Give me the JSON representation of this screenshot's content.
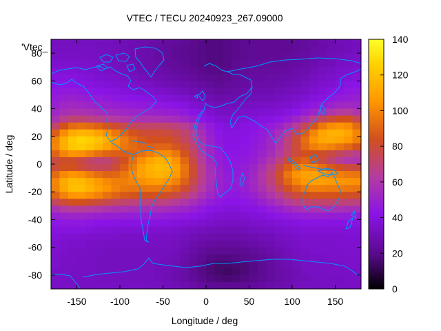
{
  "chart_data": {
    "type": "heatmap",
    "title": "VTEC / TECU 20240923_267.09000",
    "xlabel": "Longitude / deg",
    "ylabel": "Latitude / deg",
    "xlim": [
      -180,
      180
    ],
    "ylim": [
      -90,
      90
    ],
    "x_ticks": [
      -150,
      -100,
      -50,
      0,
      50,
      100,
      150
    ],
    "y_ticks": [
      -80,
      -60,
      -40,
      -20,
      0,
      20,
      40,
      60,
      80
    ],
    "colorbar": {
      "range": [
        0,
        140
      ],
      "ticks": [
        0,
        20,
        40,
        60,
        80,
        100,
        120,
        140
      ],
      "palette": [
        "#000000",
        "#5a0a8c",
        "#8a14e6",
        "#b43ca0",
        "#d2501e",
        "#ff9600",
        "#ffd200",
        "#ffff28"
      ]
    },
    "legend_fragment": "'Vtec_",
    "coastline_color": "#0096ff",
    "lat_centers": [
      87.5,
      82.5,
      77.5,
      72.5,
      67.5,
      62.5,
      57.5,
      52.5,
      47.5,
      42.5,
      37.5,
      32.5,
      27.5,
      22.5,
      17.5,
      12.5,
      7.5,
      2.5,
      -2.5,
      -7.5,
      -12.5,
      -17.5,
      -22.5,
      -27.5,
      -32.5,
      -37.5,
      -42.5,
      -47.5,
      -52.5,
      -57.5,
      -62.5,
      -67.5,
      -72.5,
      -77.5,
      -82.5,
      -87.5
    ],
    "lon_centers": [
      -175,
      -165,
      -155,
      -145,
      -135,
      -125,
      -115,
      -105,
      -95,
      -85,
      -75,
      -65,
      -55,
      -45,
      -35,
      -25,
      -15,
      -5,
      5,
      15,
      25,
      35,
      45,
      55,
      65,
      75,
      85,
      95,
      105,
      115,
      125,
      135,
      145,
      155,
      165,
      175
    ],
    "vtec_grid": [
      [
        32,
        32,
        32,
        32,
        32,
        32,
        32,
        31,
        30,
        29,
        28,
        27,
        26,
        24,
        23,
        22,
        20,
        19,
        18,
        18,
        19,
        20,
        21,
        22,
        22,
        22,
        22,
        22,
        23,
        24,
        25,
        27,
        28,
        30,
        31,
        32
      ],
      [
        33,
        33,
        33,
        33,
        33,
        32,
        32,
        31,
        30,
        29,
        28,
        27,
        25,
        24,
        22,
        21,
        20,
        19,
        18,
        18,
        19,
        20,
        21,
        22,
        22,
        22,
        22,
        22,
        23,
        24,
        26,
        27,
        29,
        30,
        31,
        32
      ],
      [
        34,
        34,
        34,
        34,
        33,
        33,
        32,
        31,
        30,
        29,
        28,
        27,
        25,
        24,
        22,
        21,
        20,
        19,
        18,
        18,
        19,
        20,
        21,
        22,
        22,
        22,
        22,
        23,
        24,
        25,
        27,
        28,
        30,
        31,
        33,
        34
      ],
      [
        36,
        36,
        36,
        35,
        35,
        34,
        33,
        32,
        31,
        30,
        28,
        27,
        26,
        24,
        23,
        22,
        20,
        19,
        18,
        18,
        19,
        21,
        22,
        23,
        23,
        23,
        23,
        24,
        25,
        26,
        28,
        30,
        31,
        33,
        34,
        35
      ],
      [
        38,
        38,
        38,
        37,
        36,
        35,
        34,
        33,
        32,
        31,
        29,
        28,
        27,
        26,
        24,
        23,
        22,
        20,
        19,
        19,
        20,
        22,
        23,
        24,
        24,
        24,
        25,
        25,
        27,
        28,
        30,
        32,
        33,
        35,
        36,
        37
      ],
      [
        40,
        40,
        40,
        39,
        38,
        37,
        36,
        35,
        34,
        32,
        31,
        30,
        29,
        28,
        26,
        25,
        24,
        22,
        21,
        20,
        21,
        23,
        24,
        25,
        25,
        26,
        26,
        27,
        28,
        30,
        32,
        34,
        35,
        37,
        38,
        39
      ],
      [
        42,
        42,
        42,
        41,
        40,
        39,
        38,
        37,
        36,
        35,
        34,
        33,
        31,
        30,
        29,
        28,
        26,
        25,
        23,
        22,
        23,
        24,
        25,
        26,
        27,
        27,
        28,
        29,
        30,
        32,
        34,
        36,
        37,
        39,
        41,
        42
      ],
      [
        44,
        45,
        45,
        44,
        43,
        42,
        41,
        40,
        39,
        38,
        37,
        36,
        35,
        34,
        32,
        31,
        29,
        28,
        26,
        24,
        25,
        26,
        27,
        28,
        29,
        29,
        30,
        31,
        32,
        34,
        36,
        38,
        40,
        42,
        44,
        45
      ],
      [
        46,
        48,
        49,
        48,
        47,
        46,
        45,
        44,
        43,
        42,
        41,
        40,
        39,
        38,
        37,
        35,
        33,
        31,
        29,
        27,
        28,
        28,
        29,
        30,
        31,
        31,
        32,
        33,
        35,
        37,
        39,
        41,
        44,
        46,
        47,
        48
      ],
      [
        49,
        52,
        53,
        52,
        51,
        50,
        49,
        48,
        47,
        46,
        45,
        45,
        44,
        43,
        42,
        40,
        37,
        35,
        32,
        30,
        31,
        31,
        32,
        33,
        34,
        34,
        35,
        36,
        38,
        41,
        44,
        47,
        50,
        52,
        53,
        52
      ],
      [
        52,
        56,
        58,
        58,
        57,
        55,
        54,
        53,
        52,
        51,
        51,
        50,
        49,
        48,
        47,
        45,
        42,
        39,
        36,
        33,
        33,
        34,
        35,
        36,
        37,
        37,
        38,
        40,
        43,
        47,
        51,
        56,
        60,
        63,
        64,
        60
      ],
      [
        58,
        66,
        70,
        70,
        68,
        66,
        64,
        62,
        60,
        59,
        58,
        58,
        57,
        56,
        55,
        52,
        48,
        43,
        40,
        37,
        36,
        37,
        38,
        39,
        40,
        41,
        43,
        46,
        51,
        58,
        66,
        74,
        80,
        84,
        84,
        76
      ],
      [
        72,
        84,
        92,
        94,
        92,
        89,
        85,
        81,
        77,
        74,
        72,
        72,
        72,
        71,
        69,
        65,
        59,
        52,
        46,
        41,
        39,
        39,
        40,
        42,
        44,
        46,
        50,
        56,
        64,
        75,
        86,
        96,
        102,
        104,
        102,
        92
      ],
      [
        88,
        102,
        112,
        116,
        114,
        109,
        103,
        96,
        90,
        85,
        81,
        80,
        80,
        79,
        76,
        71,
        64,
        56,
        48,
        43,
        40,
        40,
        41,
        43,
        46,
        50,
        56,
        64,
        75,
        88,
        100,
        110,
        114,
        114,
        110,
        100
      ],
      [
        99,
        113,
        123,
        127,
        125,
        120,
        113,
        105,
        97,
        91,
        86,
        84,
        84,
        84,
        80,
        74,
        67,
        58,
        50,
        44,
        41,
        41,
        42,
        44,
        47,
        52,
        59,
        68,
        80,
        93,
        104,
        111,
        112,
        110,
        106,
        98
      ],
      [
        100,
        113,
        122,
        124,
        121,
        116,
        109,
        102,
        96,
        92,
        89,
        89,
        90,
        90,
        86,
        79,
        70,
        60,
        51,
        45,
        42,
        42,
        43,
        45,
        48,
        53,
        60,
        69,
        80,
        91,
        98,
        101,
        99,
        95,
        91,
        85
      ],
      [
        90,
        100,
        104,
        103,
        99,
        94,
        90,
        88,
        88,
        90,
        94,
        98,
        102,
        102,
        96,
        85,
        73,
        62,
        52,
        46,
        43,
        43,
        44,
        46,
        50,
        55,
        62,
        71,
        79,
        84,
        84,
        82,
        78,
        74,
        70,
        66
      ],
      [
        78,
        82,
        82,
        78,
        73,
        70,
        71,
        76,
        84,
        94,
        103,
        110,
        114,
        112,
        104,
        91,
        77,
        64,
        54,
        47,
        44,
        44,
        45,
        48,
        53,
        60,
        69,
        79,
        87,
        90,
        86,
        79,
        71,
        65,
        61,
        60
      ],
      [
        80,
        84,
        84,
        80,
        76,
        74,
        75,
        80,
        88,
        98,
        108,
        115,
        118,
        116,
        108,
        95,
        80,
        67,
        56,
        49,
        45,
        45,
        47,
        51,
        57,
        66,
        77,
        88,
        97,
        101,
        99,
        93,
        87,
        83,
        80,
        78
      ],
      [
        92,
        101,
        105,
        103,
        98,
        93,
        90,
        91,
        95,
        101,
        108,
        113,
        115,
        113,
        106,
        94,
        80,
        67,
        57,
        50,
        46,
        46,
        48,
        52,
        60,
        70,
        82,
        95,
        104,
        109,
        109,
        105,
        101,
        98,
        96,
        95
      ],
      [
        100,
        112,
        118,
        117,
        112,
        106,
        101,
        98,
        98,
        100,
        103,
        106,
        107,
        105,
        99,
        89,
        77,
        66,
        57,
        50,
        47,
        47,
        49,
        53,
        60,
        69,
        80,
        91,
        100,
        106,
        108,
        108,
        106,
        105,
        104,
        103
      ],
      [
        99,
        111,
        119,
        119,
        115,
        109,
        104,
        99,
        96,
        95,
        95,
        96,
        96,
        94,
        89,
        81,
        72,
        63,
        55,
        49,
        46,
        46,
        48,
        52,
        58,
        65,
        74,
        83,
        90,
        95,
        98,
        98,
        97,
        97,
        96,
        95
      ],
      [
        90,
        99,
        105,
        106,
        103,
        99,
        94,
        90,
        87,
        85,
        84,
        84,
        84,
        82,
        78,
        72,
        65,
        58,
        52,
        47,
        44,
        44,
        46,
        49,
        54,
        60,
        66,
        73,
        79,
        83,
        85,
        85,
        85,
        84,
        83,
        82
      ],
      [
        74,
        80,
        84,
        84,
        82,
        79,
        76,
        73,
        71,
        69,
        68,
        68,
        68,
        67,
        64,
        60,
        56,
        51,
        47,
        44,
        42,
        42,
        43,
        45,
        49,
        53,
        58,
        63,
        67,
        70,
        71,
        71,
        71,
        70,
        69,
        68
      ],
      [
        58,
        62,
        64,
        64,
        63,
        61,
        59,
        58,
        57,
        56,
        56,
        56,
        56,
        55,
        53,
        51,
        48,
        45,
        42,
        40,
        39,
        39,
        40,
        41,
        43,
        46,
        49,
        52,
        55,
        57,
        58,
        58,
        58,
        57,
        56,
        56
      ],
      [
        48,
        50,
        51,
        51,
        50,
        49,
        48,
        48,
        47,
        47,
        47,
        47,
        47,
        46,
        45,
        44,
        42,
        40,
        38,
        37,
        36,
        36,
        37,
        38,
        39,
        41,
        43,
        45,
        46,
        47,
        48,
        48,
        47,
        47,
        46,
        46
      ],
      [
        43,
        44,
        44,
        44,
        43,
        42,
        42,
        41,
        41,
        41,
        41,
        41,
        40,
        40,
        39,
        38,
        37,
        36,
        35,
        34,
        33,
        33,
        34,
        35,
        36,
        37,
        38,
        39,
        40,
        41,
        41,
        41,
        41,
        41,
        41,
        41
      ],
      [
        40,
        40,
        40,
        40,
        39,
        38,
        38,
        37,
        37,
        37,
        37,
        36,
        36,
        36,
        35,
        34,
        33,
        32,
        31,
        30,
        30,
        30,
        31,
        32,
        33,
        34,
        35,
        36,
        37,
        38,
        38,
        38,
        38,
        38,
        38,
        38
      ],
      [
        38,
        37,
        37,
        36,
        36,
        35,
        35,
        35,
        34,
        34,
        34,
        34,
        34,
        34,
        33,
        32,
        30,
        29,
        28,
        27,
        27,
        27,
        28,
        29,
        30,
        31,
        33,
        34,
        35,
        36,
        36,
        36,
        36,
        36,
        37,
        37
      ],
      [
        37,
        36,
        35,
        35,
        34,
        34,
        33,
        33,
        33,
        33,
        33,
        33,
        33,
        33,
        32,
        30,
        28,
        26,
        25,
        24,
        24,
        24,
        25,
        26,
        28,
        29,
        31,
        32,
        34,
        35,
        35,
        35,
        35,
        36,
        36,
        36
      ],
      [
        36,
        35,
        34,
        34,
        33,
        33,
        32,
        32,
        32,
        32,
        32,
        32,
        32,
        32,
        31,
        29,
        26,
        24,
        22,
        21,
        21,
        21,
        22,
        23,
        25,
        27,
        29,
        31,
        33,
        34,
        35,
        35,
        35,
        35,
        36,
        36
      ],
      [
        35,
        34,
        34,
        33,
        33,
        32,
        32,
        32,
        32,
        32,
        32,
        32,
        32,
        31,
        30,
        27,
        24,
        22,
        19,
        18,
        18,
        19,
        20,
        21,
        23,
        25,
        28,
        30,
        32,
        33,
        34,
        34,
        35,
        35,
        35,
        35
      ],
      [
        35,
        34,
        34,
        33,
        33,
        32,
        32,
        32,
        32,
        32,
        32,
        32,
        31,
        31,
        29,
        26,
        23,
        20,
        17,
        15,
        15,
        16,
        17,
        19,
        22,
        24,
        27,
        29,
        31,
        33,
        33,
        34,
        34,
        34,
        35,
        35
      ],
      [
        34,
        34,
        33,
        33,
        33,
        32,
        32,
        32,
        32,
        32,
        32,
        32,
        31,
        30,
        28,
        26,
        22,
        19,
        17,
        15,
        14,
        15,
        17,
        19,
        21,
        24,
        26,
        28,
        30,
        32,
        33,
        33,
        34,
        34,
        34,
        34
      ],
      [
        34,
        34,
        33,
        33,
        33,
        33,
        32,
        32,
        32,
        32,
        32,
        32,
        31,
        30,
        28,
        26,
        23,
        20,
        18,
        17,
        16,
        17,
        18,
        20,
        22,
        24,
        26,
        28,
        30,
        31,
        32,
        33,
        33,
        33,
        34,
        34
      ],
      [
        34,
        34,
        34,
        33,
        33,
        33,
        33,
        33,
        33,
        33,
        33,
        32,
        32,
        31,
        30,
        28,
        26,
        24,
        22,
        21,
        21,
        21,
        22,
        23,
        25,
        26,
        28,
        29,
        31,
        32,
        32,
        33,
        33,
        33,
        34,
        34
      ]
    ]
  }
}
